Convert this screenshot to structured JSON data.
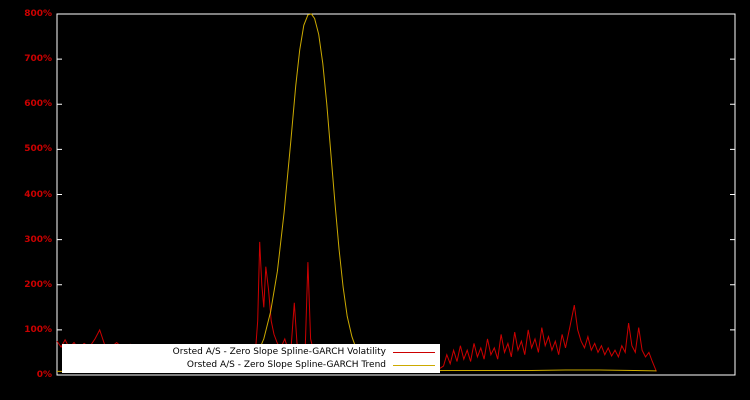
{
  "chart_data": {
    "type": "line",
    "title": "",
    "xlabel": "",
    "ylabel": "",
    "ylim": [
      0,
      800
    ],
    "grid": false,
    "background_color": "#000000",
    "frame_color": "#ffffff",
    "tick_label_color": "#cc0000",
    "legend_position": "bottom-center-inside",
    "legend_background": "#ffffff",
    "yticks": [
      {
        "value": 0,
        "label": "0%"
      },
      {
        "value": 100,
        "label": "100%"
      },
      {
        "value": 200,
        "label": "200%"
      },
      {
        "value": 300,
        "label": "300%"
      },
      {
        "value": 400,
        "label": "400%"
      },
      {
        "value": 500,
        "label": "500%"
      },
      {
        "value": 600,
        "label": "600%"
      },
      {
        "value": 700,
        "label": "700%"
      },
      {
        "value": 800,
        "label": "800%"
      }
    ],
    "series": [
      {
        "id": "volatility",
        "name": "Orsted A/S - Zero Slope Spline-GARCH Volatility",
        "color": "#cc0000",
        "points": [
          [
            0.0,
            75
          ],
          [
            0.006,
            62
          ],
          [
            0.012,
            78
          ],
          [
            0.018,
            60
          ],
          [
            0.025,
            72
          ],
          [
            0.032,
            58
          ],
          [
            0.04,
            70
          ],
          [
            0.048,
            62
          ],
          [
            0.056,
            80
          ],
          [
            0.063,
            100
          ],
          [
            0.07,
            68
          ],
          [
            0.078,
            60
          ],
          [
            0.088,
            72
          ],
          [
            0.098,
            58
          ],
          [
            0.108,
            68
          ],
          [
            0.118,
            55
          ],
          [
            0.128,
            65
          ],
          [
            0.138,
            52
          ],
          [
            0.148,
            62
          ],
          [
            0.158,
            50
          ],
          [
            0.168,
            60
          ],
          [
            0.178,
            48
          ],
          [
            0.188,
            57
          ],
          [
            0.198,
            46
          ],
          [
            0.208,
            55
          ],
          [
            0.218,
            44
          ],
          [
            0.228,
            52
          ],
          [
            0.238,
            42
          ],
          [
            0.248,
            48
          ],
          [
            0.258,
            40
          ],
          [
            0.268,
            44
          ],
          [
            0.278,
            38
          ],
          [
            0.288,
            42
          ],
          [
            0.293,
            60
          ],
          [
            0.296,
            120
          ],
          [
            0.299,
            295
          ],
          [
            0.302,
            200
          ],
          [
            0.305,
            150
          ],
          [
            0.308,
            240
          ],
          [
            0.312,
            190
          ],
          [
            0.316,
            120
          ],
          [
            0.32,
            90
          ],
          [
            0.325,
            70
          ],
          [
            0.33,
            60
          ],
          [
            0.336,
            80
          ],
          [
            0.34,
            60
          ],
          [
            0.345,
            55
          ],
          [
            0.35,
            160
          ],
          [
            0.354,
            70
          ],
          [
            0.358,
            55
          ],
          [
            0.362,
            60
          ],
          [
            0.366,
            50
          ],
          [
            0.37,
            250
          ],
          [
            0.374,
            80
          ],
          [
            0.378,
            55
          ],
          [
            0.382,
            45
          ],
          [
            0.386,
            50
          ],
          [
            0.39,
            40
          ],
          [
            0.395,
            30
          ],
          [
            0.405,
            25
          ],
          [
            0.415,
            22
          ],
          [
            0.425,
            20
          ],
          [
            0.435,
            22
          ],
          [
            0.445,
            18
          ],
          [
            0.455,
            20
          ],
          [
            0.465,
            17
          ],
          [
            0.475,
            19
          ],
          [
            0.485,
            16
          ],
          [
            0.495,
            18
          ],
          [
            0.505,
            15
          ],
          [
            0.515,
            17
          ],
          [
            0.525,
            15
          ],
          [
            0.535,
            16
          ],
          [
            0.545,
            14
          ],
          [
            0.555,
            16
          ],
          [
            0.565,
            15
          ],
          [
            0.57,
            20
          ],
          [
            0.575,
            45
          ],
          [
            0.58,
            25
          ],
          [
            0.585,
            55
          ],
          [
            0.59,
            30
          ],
          [
            0.595,
            65
          ],
          [
            0.6,
            35
          ],
          [
            0.605,
            55
          ],
          [
            0.61,
            30
          ],
          [
            0.615,
            70
          ],
          [
            0.62,
            40
          ],
          [
            0.625,
            60
          ],
          [
            0.63,
            35
          ],
          [
            0.635,
            80
          ],
          [
            0.64,
            45
          ],
          [
            0.645,
            60
          ],
          [
            0.65,
            35
          ],
          [
            0.655,
            90
          ],
          [
            0.66,
            50
          ],
          [
            0.665,
            70
          ],
          [
            0.67,
            40
          ],
          [
            0.675,
            95
          ],
          [
            0.68,
            55
          ],
          [
            0.685,
            75
          ],
          [
            0.69,
            45
          ],
          [
            0.695,
            100
          ],
          [
            0.7,
            60
          ],
          [
            0.705,
            80
          ],
          [
            0.71,
            50
          ],
          [
            0.715,
            105
          ],
          [
            0.72,
            65
          ],
          [
            0.725,
            85
          ],
          [
            0.73,
            55
          ],
          [
            0.735,
            75
          ],
          [
            0.74,
            45
          ],
          [
            0.745,
            90
          ],
          [
            0.75,
            60
          ],
          [
            0.757,
            110
          ],
          [
            0.763,
            155
          ],
          [
            0.768,
            100
          ],
          [
            0.773,
            75
          ],
          [
            0.778,
            60
          ],
          [
            0.783,
            85
          ],
          [
            0.788,
            55
          ],
          [
            0.793,
            70
          ],
          [
            0.798,
            50
          ],
          [
            0.803,
            65
          ],
          [
            0.808,
            45
          ],
          [
            0.813,
            60
          ],
          [
            0.818,
            42
          ],
          [
            0.823,
            55
          ],
          [
            0.828,
            40
          ],
          [
            0.833,
            65
          ],
          [
            0.838,
            50
          ],
          [
            0.843,
            115
          ],
          [
            0.848,
            65
          ],
          [
            0.853,
            50
          ],
          [
            0.858,
            105
          ],
          [
            0.863,
            55
          ],
          [
            0.868,
            40
          ],
          [
            0.873,
            50
          ],
          [
            0.878,
            30
          ],
          [
            0.884,
            8
          ]
        ]
      },
      {
        "id": "trend",
        "name": "Orsted A/S - Zero Slope Spline-GARCH Trend",
        "color": "#ccaa00",
        "points": [
          [
            0.0,
            8
          ],
          [
            0.05,
            8
          ],
          [
            0.1,
            9
          ],
          [
            0.15,
            9
          ],
          [
            0.2,
            10
          ],
          [
            0.24,
            12
          ],
          [
            0.26,
            16
          ],
          [
            0.28,
            25
          ],
          [
            0.295,
            45
          ],
          [
            0.305,
            80
          ],
          [
            0.315,
            140
          ],
          [
            0.325,
            230
          ],
          [
            0.335,
            360
          ],
          [
            0.345,
            520
          ],
          [
            0.352,
            640
          ],
          [
            0.358,
            720
          ],
          [
            0.364,
            775
          ],
          [
            0.37,
            798
          ],
          [
            0.375,
            800
          ],
          [
            0.38,
            790
          ],
          [
            0.386,
            755
          ],
          [
            0.392,
            690
          ],
          [
            0.398,
            600
          ],
          [
            0.404,
            490
          ],
          [
            0.41,
            380
          ],
          [
            0.416,
            280
          ],
          [
            0.422,
            195
          ],
          [
            0.428,
            130
          ],
          [
            0.435,
            85
          ],
          [
            0.442,
            55
          ],
          [
            0.45,
            35
          ],
          [
            0.458,
            24
          ],
          [
            0.468,
            17
          ],
          [
            0.48,
            13
          ],
          [
            0.5,
            11
          ],
          [
            0.55,
            10
          ],
          [
            0.6,
            10
          ],
          [
            0.65,
            10
          ],
          [
            0.7,
            10
          ],
          [
            0.75,
            11
          ],
          [
            0.8,
            11
          ],
          [
            0.85,
            10
          ],
          [
            0.884,
            9
          ]
        ]
      }
    ]
  }
}
